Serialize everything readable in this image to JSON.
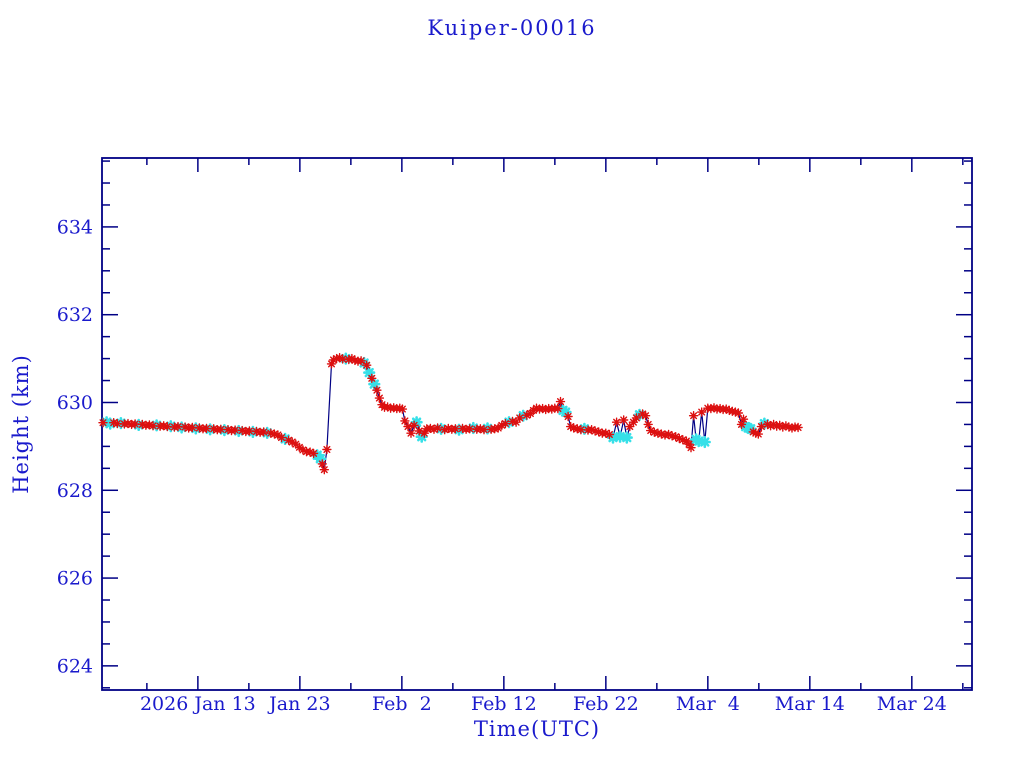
{
  "window": {
    "title": "Kuiper-00016"
  },
  "colors": {
    "background": "#ffffff",
    "text_blue": "#1a1acc",
    "axis_navy": "#000085",
    "line_navy": "#000085",
    "marker_red": "#dc1010",
    "marker_cyan": "#36e0e8"
  },
  "chart_data": {
    "type": "line",
    "title": "Kuiper-00016",
    "xlabel": "Time(UTC)",
    "ylabel": "Height (km)",
    "x_unit": "day-of-year 2026 (Jan 13 = 13)",
    "xlim": [
      3.6,
      88.9
    ],
    "ylim": [
      623.45,
      635.57
    ],
    "x_major_ticks": [
      13,
      23,
      33,
      43,
      53,
      63,
      73,
      83
    ],
    "x_major_labels": [
      "2026 Jan 13",
      "Jan 23",
      "Feb  2",
      "Feb 12",
      "Feb 22",
      "Mar  4",
      "Mar 14",
      "Mar 24"
    ],
    "x_minor_ticks": [
      8,
      18,
      28,
      38,
      48,
      58,
      68,
      78,
      88
    ],
    "y_major_ticks": [
      624,
      626,
      628,
      630,
      632,
      634
    ],
    "y_major_labels": [
      "624",
      "626",
      "628",
      "630",
      "632",
      "634"
    ],
    "y_minor_step": 0.5,
    "grid": false,
    "legend": null,
    "series_info": [
      {
        "name": "height-red-asterisks",
        "marker": "asterisk",
        "color": "#dc1010"
      },
      {
        "name": "height-cyan-points",
        "marker": "asterisk",
        "color": "#36e0e8"
      }
    ],
    "point_format": "[day_of_year_2026, height_km, cyan_flag(optional 1)]",
    "points": [
      [
        3.7,
        629.54
      ],
      [
        4.05,
        629.55,
        1
      ],
      [
        4.4,
        629.52,
        1
      ],
      [
        4.75,
        629.54
      ],
      [
        5.1,
        629.52
      ],
      [
        5.45,
        629.53,
        1
      ],
      [
        5.8,
        629.51
      ],
      [
        6.15,
        629.52
      ],
      [
        6.5,
        629.5
      ],
      [
        6.85,
        629.51
      ],
      [
        7.2,
        629.49,
        1
      ],
      [
        7.55,
        629.5
      ],
      [
        7.9,
        629.48
      ],
      [
        8.25,
        629.49
      ],
      [
        8.6,
        629.47
      ],
      [
        8.95,
        629.48,
        1
      ],
      [
        9.3,
        629.46
      ],
      [
        9.65,
        629.47
      ],
      [
        10.0,
        629.45
      ],
      [
        10.35,
        629.46,
        1
      ],
      [
        10.7,
        629.44
      ],
      [
        11.05,
        629.45
      ],
      [
        11.4,
        629.43,
        1
      ],
      [
        11.75,
        629.44
      ],
      [
        12.1,
        629.42
      ],
      [
        12.45,
        629.43
      ],
      [
        12.8,
        629.41,
        1
      ],
      [
        13.15,
        629.42
      ],
      [
        13.5,
        629.4
      ],
      [
        13.85,
        629.41
      ],
      [
        14.2,
        629.39,
        1
      ],
      [
        14.55,
        629.4
      ],
      [
        14.9,
        629.38
      ],
      [
        15.25,
        629.39
      ],
      [
        15.6,
        629.37,
        1
      ],
      [
        15.95,
        629.38
      ],
      [
        16.3,
        629.36
      ],
      [
        16.65,
        629.37
      ],
      [
        17.0,
        629.35,
        1
      ],
      [
        17.35,
        629.36
      ],
      [
        17.7,
        629.34
      ],
      [
        18.05,
        629.35
      ],
      [
        18.4,
        629.33,
        1
      ],
      [
        18.75,
        629.34
      ],
      [
        19.1,
        629.32
      ],
      [
        19.45,
        629.33
      ],
      [
        19.8,
        629.31,
        1
      ],
      [
        20.15,
        629.3
      ],
      [
        20.5,
        629.28
      ],
      [
        20.85,
        629.26
      ],
      [
        21.2,
        629.2
      ],
      [
        21.55,
        629.17,
        1
      ],
      [
        21.9,
        629.14
      ],
      [
        22.25,
        629.1
      ],
      [
        22.6,
        629.05
      ],
      [
        22.95,
        628.98
      ],
      [
        23.3,
        628.92
      ],
      [
        23.65,
        628.88
      ],
      [
        24.0,
        628.87
      ],
      [
        24.35,
        628.84
      ],
      [
        24.7,
        628.8,
        1
      ],
      [
        25.0,
        628.72,
        1
      ],
      [
        25.2,
        628.6
      ],
      [
        25.4,
        628.47
      ],
      [
        25.65,
        628.93
      ],
      [
        26.1,
        630.88
      ],
      [
        26.3,
        630.97
      ],
      [
        26.6,
        631.0
      ],
      [
        26.9,
        631.02
      ],
      [
        27.2,
        630.99
      ],
      [
        27.5,
        631.0,
        1
      ],
      [
        27.8,
        630.98
      ],
      [
        28.1,
        631.0
      ],
      [
        28.4,
        630.96
      ],
      [
        28.7,
        630.94
      ],
      [
        29.0,
        630.95
      ],
      [
        29.3,
        630.9,
        1
      ],
      [
        29.55,
        630.85
      ],
      [
        29.8,
        630.68,
        1
      ],
      [
        30.05,
        630.55
      ],
      [
        30.3,
        630.42,
        1
      ],
      [
        30.55,
        630.28
      ],
      [
        30.8,
        630.1
      ],
      [
        31.05,
        629.95
      ],
      [
        31.3,
        629.89
      ],
      [
        31.6,
        629.9
      ],
      [
        31.9,
        629.87
      ],
      [
        32.2,
        629.88
      ],
      [
        32.5,
        629.86
      ],
      [
        32.8,
        629.87
      ],
      [
        33.05,
        629.85
      ],
      [
        33.3,
        629.58
      ],
      [
        33.6,
        629.45
      ],
      [
        33.9,
        629.3
      ],
      [
        34.2,
        629.48
      ],
      [
        34.45,
        629.55,
        1
      ],
      [
        34.7,
        629.35
      ],
      [
        34.95,
        629.22,
        1
      ],
      [
        35.2,
        629.3
      ],
      [
        35.45,
        629.4
      ],
      [
        35.8,
        629.41
      ],
      [
        36.15,
        629.39
      ],
      [
        36.5,
        629.42
      ],
      [
        36.85,
        629.4,
        1
      ],
      [
        37.2,
        629.38
      ],
      [
        37.55,
        629.41
      ],
      [
        37.9,
        629.39
      ],
      [
        38.25,
        629.4
      ],
      [
        38.6,
        629.38,
        1
      ],
      [
        38.95,
        629.41
      ],
      [
        39.3,
        629.39
      ],
      [
        39.65,
        629.4
      ],
      [
        40.0,
        629.42,
        1
      ],
      [
        40.35,
        629.39
      ],
      [
        40.7,
        629.4
      ],
      [
        41.05,
        629.38
      ],
      [
        41.4,
        629.41,
        1
      ],
      [
        41.75,
        629.39
      ],
      [
        42.1,
        629.4
      ],
      [
        42.45,
        629.42
      ],
      [
        42.8,
        629.48
      ],
      [
        43.15,
        629.52
      ],
      [
        43.5,
        629.55,
        1
      ],
      [
        43.85,
        629.57
      ],
      [
        44.2,
        629.55
      ],
      [
        44.55,
        629.65
      ],
      [
        44.9,
        629.7,
        1
      ],
      [
        45.25,
        629.71
      ],
      [
        45.6,
        629.75
      ],
      [
        45.9,
        629.82
      ],
      [
        46.2,
        629.87
      ],
      [
        46.5,
        629.85
      ],
      [
        46.8,
        629.86
      ],
      [
        47.1,
        629.84
      ],
      [
        47.4,
        629.86
      ],
      [
        47.7,
        629.85
      ],
      [
        48.0,
        629.87
      ],
      [
        48.3,
        629.86
      ],
      [
        48.55,
        630.02
      ],
      [
        48.8,
        629.82,
        1
      ],
      [
        49.05,
        629.78,
        1
      ],
      [
        49.3,
        629.68
      ],
      [
        49.55,
        629.45
      ],
      [
        49.85,
        629.42
      ],
      [
        50.2,
        629.4
      ],
      [
        50.55,
        629.38
      ],
      [
        50.9,
        629.4,
        1
      ],
      [
        51.25,
        629.37
      ],
      [
        51.6,
        629.38
      ],
      [
        51.95,
        629.35
      ],
      [
        52.3,
        629.33
      ],
      [
        52.65,
        629.3
      ],
      [
        53.0,
        629.3
      ],
      [
        53.35,
        629.27
      ],
      [
        53.7,
        629.2,
        1
      ],
      [
        54.05,
        629.55
      ],
      [
        54.4,
        629.22,
        1
      ],
      [
        54.75,
        629.6
      ],
      [
        55.05,
        629.2,
        1
      ],
      [
        55.35,
        629.45
      ],
      [
        55.7,
        629.55
      ],
      [
        56.0,
        629.65
      ],
      [
        56.3,
        629.72,
        1
      ],
      [
        56.6,
        629.74
      ],
      [
        56.9,
        629.7
      ],
      [
        57.15,
        629.5
      ],
      [
        57.4,
        629.36
      ],
      [
        57.75,
        629.32
      ],
      [
        58.1,
        629.3
      ],
      [
        58.45,
        629.28
      ],
      [
        58.8,
        629.26
      ],
      [
        59.15,
        629.27
      ],
      [
        59.5,
        629.24
      ],
      [
        59.85,
        629.22
      ],
      [
        60.2,
        629.18
      ],
      [
        60.55,
        629.15
      ],
      [
        60.9,
        629.12
      ],
      [
        61.15,
        629.05
      ],
      [
        61.35,
        628.97
      ],
      [
        61.6,
        629.7
      ],
      [
        61.85,
        629.16,
        1
      ],
      [
        62.1,
        629.12,
        1
      ],
      [
        62.4,
        629.78
      ],
      [
        62.7,
        629.1,
        1
      ],
      [
        63.0,
        629.87
      ],
      [
        63.3,
        629.86
      ],
      [
        63.6,
        629.88
      ],
      [
        63.9,
        629.85
      ],
      [
        64.2,
        629.86
      ],
      [
        64.5,
        629.84
      ],
      [
        64.8,
        629.85
      ],
      [
        65.1,
        629.82
      ],
      [
        65.4,
        629.8
      ],
      [
        65.7,
        629.78
      ],
      [
        66.0,
        629.76
      ],
      [
        66.3,
        629.5
      ],
      [
        66.5,
        629.62
      ],
      [
        66.7,
        629.45,
        1
      ],
      [
        66.95,
        629.42,
        1
      ],
      [
        67.2,
        629.4,
        1
      ],
      [
        67.45,
        629.33
      ],
      [
        67.7,
        629.3
      ],
      [
        67.95,
        629.28
      ],
      [
        68.25,
        629.45
      ],
      [
        68.55,
        629.52,
        1
      ],
      [
        68.85,
        629.5
      ],
      [
        69.15,
        629.47
      ],
      [
        69.45,
        629.5
      ],
      [
        69.75,
        629.46
      ],
      [
        70.05,
        629.48
      ],
      [
        70.35,
        629.44
      ],
      [
        70.65,
        629.47
      ],
      [
        70.95,
        629.44
      ],
      [
        71.25,
        629.42
      ],
      [
        71.55,
        629.44
      ],
      [
        71.85,
        629.43
      ]
    ]
  }
}
